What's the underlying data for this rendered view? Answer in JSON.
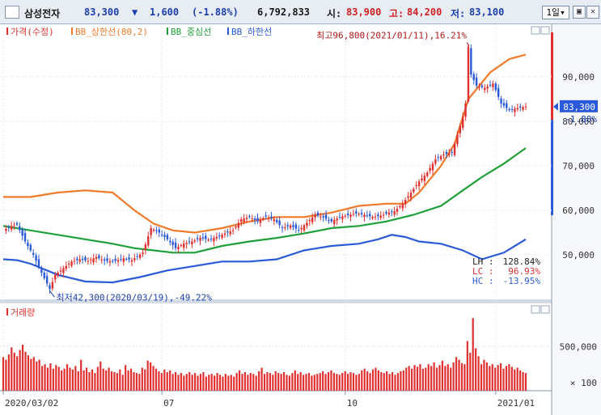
{
  "header": {
    "stock_name": "삼성전자",
    "price": "83,300",
    "change_arrow": "▼",
    "change": "1,600",
    "change_pct": "(-1.88%)",
    "volume": "6,792,833",
    "open_label": "시:",
    "open": "83,900",
    "high_label": "고:",
    "high": "84,200",
    "low_label": "저:",
    "low": "83,100",
    "period": "1일",
    "period_icon": "dropdown-icon",
    "btn1_icon": "maximize-icon",
    "btn2_icon": "close-icon"
  },
  "colors": {
    "price_up": "#e03030",
    "price_down": "#2a5ad7",
    "bb_upper": "#f07a2a",
    "bb_middle": "#1fa03a",
    "bb_lower": "#2a5ad7",
    "volume_bar": "#e03030"
  },
  "chart_data": [
    {
      "type": "line",
      "panel": "price",
      "legend": [
        "가격(수정)",
        "BB_상한선(80,2)",
        "BB_중심선",
        "BB_하한선"
      ],
      "x_ticks": [
        "2020/03/02",
        "07",
        "10",
        "2021/01"
      ],
      "y_ticks": [
        "90,000",
        "80,000",
        "70,000",
        "60,000",
        "50,000"
      ],
      "ylim": [
        40000,
        100000
      ],
      "current_price_label": "83,300",
      "current_change_label": "-1.88%",
      "annotation_high": "최고96,800(2021/01/11),16.21%",
      "annotation_low": "최저42,300(2020/03/19),-49.22%",
      "band_stats": [
        {
          "label": "LH :",
          "value": "128.84%",
          "color": "#202020"
        },
        {
          "label": "LC :",
          "value": "96.93%",
          "color": "#e03030"
        },
        {
          "label": "HC :",
          "value": "-13.95%",
          "color": "#2a5ad7"
        }
      ],
      "price": [
        [
          0,
          55500
        ],
        [
          3,
          56500
        ],
        [
          5,
          56800
        ],
        [
          8,
          53000
        ],
        [
          11,
          50000
        ],
        [
          14,
          46000
        ],
        [
          17,
          42300
        ],
        [
          19,
          45500
        ],
        [
          22,
          47000
        ],
        [
          25,
          48500
        ],
        [
          28,
          49000
        ],
        [
          31,
          48600
        ],
        [
          34,
          49500
        ],
        [
          37,
          48700
        ],
        [
          40,
          48500
        ],
        [
          44,
          49200
        ],
        [
          47,
          48800
        ],
        [
          51,
          50500
        ],
        [
          54,
          56000
        ],
        [
          57,
          55000
        ],
        [
          60,
          53500
        ],
        [
          63,
          51500
        ],
        [
          66,
          52500
        ],
        [
          69,
          53000
        ],
        [
          72,
          53800
        ],
        [
          75,
          53400
        ],
        [
          78,
          54000
        ],
        [
          81,
          54800
        ],
        [
          84,
          55500
        ],
        [
          87,
          58000
        ],
        [
          90,
          58500
        ],
        [
          93,
          57500
        ],
        [
          96,
          58600
        ],
        [
          99,
          58000
        ],
        [
          102,
          56000
        ],
        [
          105,
          56600
        ],
        [
          108,
          55500
        ],
        [
          111,
          57200
        ],
        [
          114,
          59000
        ],
        [
          117,
          58400
        ],
        [
          120,
          57500
        ],
        [
          123,
          58500
        ],
        [
          126,
          58900
        ],
        [
          129,
          59300
        ],
        [
          132,
          59000
        ],
        [
          135,
          58500
        ],
        [
          138,
          58800
        ],
        [
          141,
          59500
        ],
        [
          143,
          59800
        ],
        [
          146,
          61500
        ],
        [
          149,
          64000
        ],
        [
          152,
          66500
        ],
        [
          155,
          68500
        ],
        [
          158,
          71500
        ],
        [
          161,
          72500
        ],
        [
          164,
          73000
        ],
        [
          166,
          77000
        ],
        [
          168,
          81000
        ],
        [
          169,
          84000
        ],
        [
          170,
          96800
        ],
        [
          171,
          90500
        ],
        [
          173,
          88000
        ],
        [
          176,
          87500
        ],
        [
          179,
          88500
        ],
        [
          182,
          84000
        ],
        [
          185,
          82500
        ],
        [
          188,
          83000
        ],
        [
          191,
          83300
        ]
      ],
      "bb_upper": [
        [
          0,
          63000
        ],
        [
          10,
          63000
        ],
        [
          20,
          64000
        ],
        [
          30,
          64500
        ],
        [
          40,
          64000
        ],
        [
          48,
          60000
        ],
        [
          55,
          57000
        ],
        [
          62,
          55500
        ],
        [
          70,
          55000
        ],
        [
          80,
          56000
        ],
        [
          90,
          57500
        ],
        [
          100,
          58500
        ],
        [
          110,
          58500
        ],
        [
          120,
          59500
        ],
        [
          130,
          61000
        ],
        [
          140,
          61500
        ],
        [
          147,
          61500
        ],
        [
          152,
          64000
        ],
        [
          160,
          70000
        ],
        [
          165,
          75000
        ],
        [
          170,
          85000
        ],
        [
          178,
          91000
        ],
        [
          185,
          94000
        ],
        [
          191,
          95000
        ]
      ],
      "bb_middle": [
        [
          0,
          56500
        ],
        [
          10,
          55500
        ],
        [
          20,
          54500
        ],
        [
          30,
          53500
        ],
        [
          40,
          52500
        ],
        [
          48,
          51500
        ],
        [
          55,
          51000
        ],
        [
          62,
          50500
        ],
        [
          70,
          50500
        ],
        [
          80,
          52000
        ],
        [
          90,
          53000
        ],
        [
          100,
          53800
        ],
        [
          110,
          54800
        ],
        [
          120,
          56000
        ],
        [
          130,
          56500
        ],
        [
          140,
          57500
        ],
        [
          150,
          59000
        ],
        [
          160,
          61000
        ],
        [
          168,
          64500
        ],
        [
          175,
          67500
        ],
        [
          183,
          70500
        ],
        [
          191,
          74000
        ]
      ],
      "bb_lower": [
        [
          0,
          49000
        ],
        [
          5,
          48800
        ],
        [
          10,
          48000
        ],
        [
          20,
          45500
        ],
        [
          30,
          44000
        ],
        [
          40,
          43800
        ],
        [
          50,
          45000
        ],
        [
          60,
          46500
        ],
        [
          70,
          47500
        ],
        [
          80,
          48500
        ],
        [
          90,
          48500
        ],
        [
          100,
          49000
        ],
        [
          110,
          51000
        ],
        [
          120,
          52000
        ],
        [
          130,
          52500
        ],
        [
          137,
          53500
        ],
        [
          142,
          54500
        ],
        [
          147,
          54000
        ],
        [
          152,
          53000
        ],
        [
          160,
          52500
        ],
        [
          168,
          51000
        ],
        [
          175,
          49000
        ],
        [
          183,
          50500
        ],
        [
          191,
          53500
        ]
      ]
    },
    {
      "type": "bar",
      "panel": "volume",
      "legend": [
        "거래량"
      ],
      "y_ticks": [
        "500,000",
        "× 100"
      ],
      "ylim": [
        0,
        850000
      ],
      "values": [
        380000,
        350000,
        410000,
        490000,
        430000,
        390000,
        460000,
        520000,
        440000,
        400000,
        360000,
        380000,
        330000,
        350000,
        280000,
        300000,
        260000,
        310000,
        250000,
        290000,
        270000,
        230000,
        250000,
        300000,
        260000,
        240000,
        280000,
        220000,
        350000,
        230000,
        260000,
        210000,
        240000,
        200000,
        270000,
        330000,
        250000,
        230000,
        260000,
        220000,
        210000,
        200000,
        240000,
        180000,
        290000,
        230000,
        250000,
        210000,
        200000,
        190000,
        260000,
        240000,
        340000,
        320000,
        280000,
        250000,
        220000,
        200000,
        240000,
        210000,
        230000,
        190000,
        210000,
        180000,
        200000,
        170000,
        190000,
        210000,
        180000,
        200000,
        170000,
        190000,
        210000,
        160000,
        180000,
        190000,
        170000,
        200000,
        180000,
        160000,
        190000,
        170000,
        180000,
        160000,
        200000,
        230000,
        190000,
        210000,
        180000,
        200000,
        190000,
        170000,
        220000,
        260000,
        190000,
        210000,
        200000,
        180000,
        220000,
        200000,
        190000,
        210000,
        180000,
        170000,
        200000,
        230000,
        190000,
        210000,
        180000,
        190000,
        200000,
        170000,
        180000,
        190000,
        200000,
        220000,
        190000,
        210000,
        230000,
        200000,
        190000,
        180000,
        200000,
        220000,
        190000,
        210000,
        200000,
        180000,
        190000,
        230000,
        250000,
        220000,
        200000,
        240000,
        260000,
        230000,
        210000,
        200000,
        220000,
        190000,
        210000,
        180000,
        200000,
        220000,
        230000,
        260000,
        280000,
        250000,
        290000,
        270000,
        300000,
        250000,
        260000,
        300000,
        280000,
        320000,
        260000,
        290000,
        340000,
        280000,
        300000,
        260000,
        320000,
        380000,
        350000,
        310000,
        300000,
        560000,
        430000,
        820000,
        480000,
        390000,
        300000,
        350000,
        320000,
        280000,
        300000,
        260000,
        290000,
        310000,
        250000,
        280000,
        300000,
        270000,
        240000,
        260000,
        230000,
        210000,
        200000
      ]
    }
  ]
}
